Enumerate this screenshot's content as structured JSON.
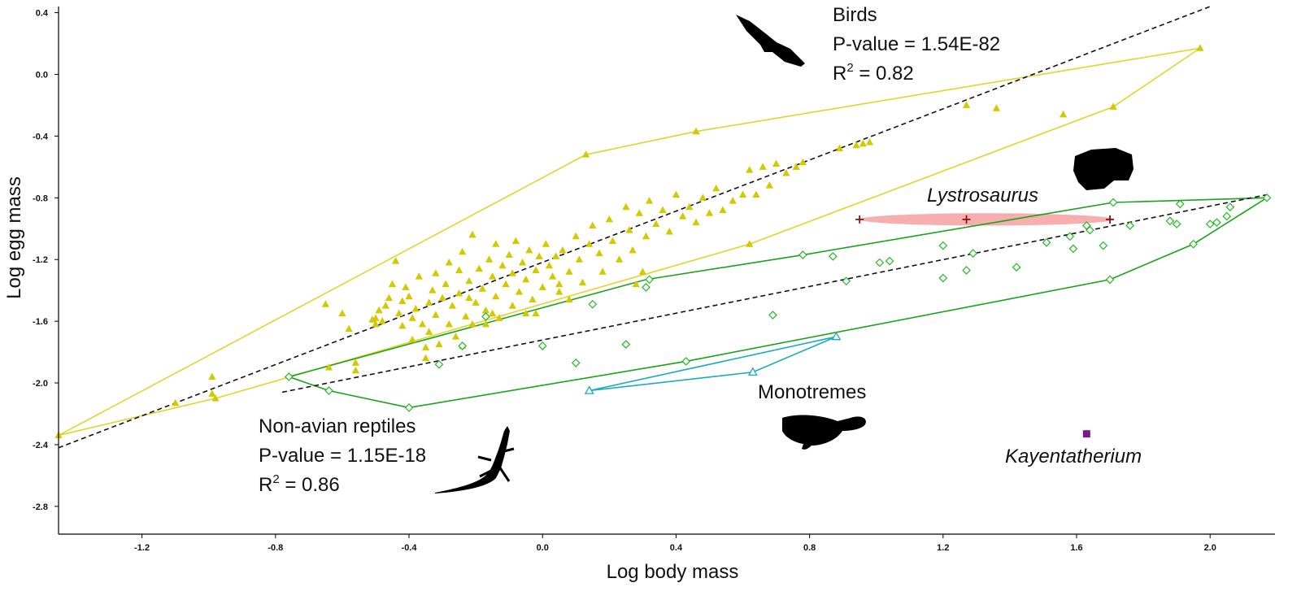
{
  "chart_data": {
    "type": "scatter",
    "xlabel": "Log body mass",
    "ylabel": "Log egg mass",
    "xlim": [
      -1.45,
      2.17
    ],
    "ylim": [
      -2.98,
      0.44
    ],
    "x_ticks": [
      -1.2,
      -0.8,
      -0.4,
      0.0,
      0.4,
      0.8,
      1.2,
      1.6,
      2.0
    ],
    "x_tick_labels": [
      "-1.2",
      "-0.8",
      "-0.4",
      "0.0",
      "0.4",
      "0.8",
      "1.2",
      "1.6",
      "2.0"
    ],
    "y_ticks": [
      0.4,
      0.0,
      -0.4,
      -0.8,
      -1.2,
      -1.6,
      -2.0,
      -2.4,
      -2.8
    ],
    "y_tick_labels": [
      "0.4",
      "0.0",
      "-0.4",
      "-0.8",
      "-1.2",
      "-1.6",
      "-2.0",
      "-2.4",
      "-2.8"
    ],
    "grid": false,
    "colors": {
      "birds": "#d4c800",
      "birds_hull": "#e2d42a",
      "reptiles": "#22b822",
      "reptiles_hull": "#1aa31a",
      "monotremes": "#1aacbc",
      "lystrosaurus": "#8b1010",
      "lystrosaurus_ellipse": "#f4a0a0",
      "kayentatherium": "#7a1a8a",
      "regression": "#111111",
      "lystrosaurus_label": "#e41e1e"
    },
    "series": [
      {
        "marker": "filled-triangle",
        "color": "#d4c800",
        "points": [
          [
            -1.45,
            -2.34
          ],
          [
            -1.1,
            -2.13
          ],
          [
            -0.99,
            -1.96
          ],
          [
            -0.99,
            -2.07
          ],
          [
            -0.98,
            -2.1
          ],
          [
            -0.65,
            -1.49
          ],
          [
            -0.64,
            -1.9
          ],
          [
            -0.6,
            -1.55
          ],
          [
            -0.58,
            -1.65
          ],
          [
            -0.56,
            -1.87
          ],
          [
            -0.56,
            -1.92
          ],
          [
            -0.5,
            -1.62
          ],
          [
            -0.5,
            -1.58
          ],
          [
            -0.49,
            -1.53
          ],
          [
            -0.48,
            -1.6
          ],
          [
            -0.47,
            -1.5
          ],
          [
            -0.46,
            -1.45
          ],
          [
            -0.45,
            -1.36
          ],
          [
            -0.44,
            -1.21
          ],
          [
            -0.43,
            -1.55
          ],
          [
            -0.42,
            -1.47
          ],
          [
            -0.42,
            -1.63
          ],
          [
            -0.41,
            -1.38
          ],
          [
            -0.4,
            -1.44
          ],
          [
            -0.39,
            -1.58
          ],
          [
            -0.39,
            -1.72
          ],
          [
            -0.38,
            -1.52
          ],
          [
            -0.37,
            -1.31
          ],
          [
            -0.36,
            -1.62
          ],
          [
            -0.35,
            -1.77
          ],
          [
            -0.34,
            -1.48
          ],
          [
            -0.34,
            -1.67
          ],
          [
            -0.33,
            -1.4
          ],
          [
            -0.32,
            -1.29
          ],
          [
            -0.32,
            -1.56
          ],
          [
            -0.31,
            -1.75
          ],
          [
            -0.3,
            -1.45
          ],
          [
            -0.29,
            -1.36
          ],
          [
            -0.28,
            -1.62
          ],
          [
            -0.28,
            -1.22
          ],
          [
            -0.27,
            -1.5
          ],
          [
            -0.26,
            -1.7
          ],
          [
            -0.25,
            -1.42
          ],
          [
            -0.25,
            -1.27
          ],
          [
            -0.24,
            -1.15
          ],
          [
            -0.23,
            -1.57
          ],
          [
            -0.22,
            -1.34
          ],
          [
            -0.21,
            -1.04
          ],
          [
            -0.21,
            -1.62
          ],
          [
            -0.2,
            -1.48
          ],
          [
            -0.19,
            -1.26
          ],
          [
            -0.18,
            -1.39
          ],
          [
            -0.17,
            -1.53
          ],
          [
            -0.16,
            -1.2
          ],
          [
            -0.15,
            -1.31
          ],
          [
            -0.14,
            -1.44
          ],
          [
            -0.14,
            -1.1
          ],
          [
            -0.13,
            -1.58
          ],
          [
            -0.12,
            -1.24
          ],
          [
            -0.11,
            -1.36
          ],
          [
            -0.1,
            -1.17
          ],
          [
            -0.09,
            -1.29
          ],
          [
            -0.09,
            -1.5
          ],
          [
            -0.08,
            -1.08
          ],
          [
            -0.07,
            -1.41
          ],
          [
            -0.06,
            -1.22
          ],
          [
            -0.05,
            -1.33
          ],
          [
            -0.04,
            -1.14
          ],
          [
            -0.03,
            -1.46
          ],
          [
            -0.02,
            -1.27
          ],
          [
            -0.01,
            -1.18
          ],
          [
            0.0,
            -1.38
          ],
          [
            0.01,
            -1.1
          ],
          [
            0.02,
            -1.24
          ],
          [
            0.03,
            -1.31
          ],
          [
            0.04,
            -1.18
          ],
          [
            0.05,
            -1.41
          ],
          [
            0.06,
            -1.14
          ],
          [
            0.08,
            -1.28
          ],
          [
            0.1,
            -1.05
          ],
          [
            0.11,
            -1.2
          ],
          [
            0.12,
            -1.35
          ],
          [
            0.14,
            -1.1
          ],
          [
            0.15,
            -0.98
          ],
          [
            0.17,
            -1.16
          ],
          [
            0.18,
            -1.28
          ],
          [
            0.2,
            -0.94
          ],
          [
            0.21,
            -1.08
          ],
          [
            0.23,
            -1.2
          ],
          [
            0.25,
            -0.86
          ],
          [
            0.26,
            -1.01
          ],
          [
            0.27,
            -1.14
          ],
          [
            0.29,
            -0.9
          ],
          [
            0.31,
            -1.05
          ],
          [
            0.32,
            -0.82
          ],
          [
            0.34,
            -0.97
          ],
          [
            0.36,
            -0.88
          ],
          [
            0.38,
            -1.02
          ],
          [
            0.4,
            -0.78
          ],
          [
            0.42,
            -0.92
          ],
          [
            0.44,
            -0.86
          ],
          [
            0.46,
            -0.96
          ],
          [
            0.48,
            -0.8
          ],
          [
            0.5,
            -0.9
          ],
          [
            0.52,
            -0.74
          ],
          [
            0.54,
            -0.88
          ],
          [
            0.57,
            -0.82
          ],
          [
            0.6,
            -0.78
          ],
          [
            0.62,
            -0.62
          ],
          [
            0.64,
            -0.78
          ],
          [
            0.66,
            -0.6
          ],
          [
            0.68,
            -0.72
          ],
          [
            0.7,
            -0.58
          ],
          [
            0.73,
            -0.64
          ],
          [
            0.76,
            -0.6
          ],
          [
            0.78,
            -0.57
          ],
          [
            0.89,
            -0.48
          ],
          [
            0.94,
            -0.46
          ],
          [
            0.96,
            -0.45
          ],
          [
            0.98,
            -0.44
          ],
          [
            0.13,
            -0.52
          ],
          [
            0.46,
            -0.37
          ],
          [
            0.62,
            -1.1
          ],
          [
            0.3,
            -1.28
          ],
          [
            -0.24,
            -1.76
          ],
          [
            -0.17,
            -1.62
          ],
          [
            -0.35,
            -1.84
          ],
          [
            1.27,
            -0.2
          ],
          [
            1.36,
            -0.22
          ],
          [
            1.56,
            -0.26
          ],
          [
            1.71,
            -0.21
          ],
          [
            1.97,
            0.17
          ],
          [
            -0.51,
            -1.59
          ],
          [
            -0.02,
            -1.55
          ],
          [
            -0.22,
            -1.45
          ],
          [
            0.08,
            -1.46
          ],
          [
            -0.15,
            -1.55
          ],
          [
            0.28,
            -1.36
          ],
          [
            0.05,
            -1.36
          ],
          [
            -0.05,
            -1.55
          ]
        ]
      },
      {
        "marker": "open-diamond",
        "color": "#22b822",
        "points": [
          [
            -0.76,
            -1.96
          ],
          [
            -0.64,
            -2.05
          ],
          [
            -0.4,
            -2.16
          ],
          [
            -0.31,
            -1.88
          ],
          [
            -0.24,
            -1.76
          ],
          [
            -0.17,
            -1.57
          ],
          [
            0.0,
            -1.76
          ],
          [
            0.1,
            -1.87
          ],
          [
            0.15,
            -1.49
          ],
          [
            0.25,
            -1.75
          ],
          [
            0.31,
            -1.38
          ],
          [
            0.32,
            -1.33
          ],
          [
            0.43,
            -1.86
          ],
          [
            0.69,
            -1.56
          ],
          [
            0.78,
            -1.17
          ],
          [
            0.87,
            -1.18
          ],
          [
            0.91,
            -1.34
          ],
          [
            1.01,
            -1.22
          ],
          [
            1.04,
            -1.21
          ],
          [
            1.2,
            -1.11
          ],
          [
            1.2,
            -1.32
          ],
          [
            1.27,
            -1.27
          ],
          [
            1.29,
            -1.16
          ],
          [
            1.42,
            -1.25
          ],
          [
            1.51,
            -1.09
          ],
          [
            1.58,
            -1.05
          ],
          [
            1.59,
            -1.13
          ],
          [
            1.63,
            -0.98
          ],
          [
            1.64,
            -1.01
          ],
          [
            1.68,
            -1.11
          ],
          [
            1.7,
            -1.33
          ],
          [
            1.71,
            -0.83
          ],
          [
            1.76,
            -0.98
          ],
          [
            1.88,
            -0.95
          ],
          [
            1.9,
            -0.97
          ],
          [
            1.91,
            -0.84
          ],
          [
            1.95,
            -1.1
          ],
          [
            2.0,
            -0.97
          ],
          [
            2.02,
            -0.96
          ],
          [
            2.05,
            -0.92
          ],
          [
            2.06,
            -0.86
          ],
          [
            2.17,
            -0.8
          ]
        ]
      },
      {
        "marker": "open-triangle",
        "color": "#1aacbc",
        "points": [
          [
            0.14,
            -2.05
          ],
          [
            0.63,
            -1.93
          ],
          [
            0.88,
            -1.7
          ]
        ]
      },
      {
        "name": "Lystrosaurus",
        "marker": "plus",
        "color": "#8b1010",
        "points": [
          [
            0.95,
            -0.94
          ],
          [
            1.27,
            -0.94
          ],
          [
            1.7,
            -0.94
          ]
        ]
      },
      {
        "name": "Kayentatherium",
        "marker": "filled-square",
        "color": "#7a1a8a",
        "points": [
          [
            1.63,
            -2.33
          ]
        ]
      }
    ],
    "hulls": [
      {
        "color": "#e2d42a",
        "points": [
          [
            -1.45,
            -2.34
          ],
          [
            0.13,
            -0.52
          ],
          [
            0.46,
            -0.37
          ],
          [
            1.97,
            0.17
          ],
          [
            1.71,
            -0.21
          ],
          [
            0.62,
            -1.1
          ],
          [
            -0.98,
            -2.1
          ],
          [
            -1.45,
            -2.34
          ]
        ]
      },
      {
        "color": "#1aa31a",
        "points": [
          [
            -0.76,
            -1.96
          ],
          [
            0.31,
            -1.33
          ],
          [
            0.78,
            -1.17
          ],
          [
            1.71,
            -0.83
          ],
          [
            2.17,
            -0.8
          ],
          [
            1.95,
            -1.1
          ],
          [
            1.7,
            -1.33
          ],
          [
            0.43,
            -1.86
          ],
          [
            -0.4,
            -2.16
          ],
          [
            -0.64,
            -2.05
          ],
          [
            -0.76,
            -1.96
          ]
        ]
      },
      {
        "color": "#1aacbc",
        "points": [
          [
            0.14,
            -2.05
          ],
          [
            0.88,
            -1.7
          ],
          [
            0.63,
            -1.93
          ],
          [
            0.14,
            -2.05
          ]
        ]
      }
    ],
    "regression_lines": [
      {
        "x1": -1.45,
        "y1": -2.42,
        "x2": 2.0,
        "y2": 0.44
      },
      {
        "x1": -0.78,
        "y1": -2.06,
        "x2": 2.17,
        "y2": -0.78
      }
    ],
    "ellipse": {
      "cx": 1.33,
      "cy": -0.94,
      "rx": 0.38,
      "ry": 0.04
    },
    "annotations": {
      "birds_title": "Birds",
      "birds_p": "P-value = 1.54E-82",
      "birds_r2_prefix": "R",
      "birds_r2_sup": "2",
      "birds_r2_value": " = 0.82",
      "reptiles_title": "Non-avian reptiles",
      "reptiles_p": "P-value = 1.15E-18",
      "reptiles_r2_prefix": "R",
      "reptiles_r2_sup": "2",
      "reptiles_r2_value": " = 0.86",
      "monotremes": "Monotremes",
      "lystrosaurus": "Lystrosaurus",
      "kayentatherium": "Kayentatherium"
    },
    "silhouette_icons": [
      "bird-silhouette-icon",
      "lizard-silhouette-icon",
      "platypus-silhouette-icon",
      "skull-silhouette-icon"
    ]
  }
}
